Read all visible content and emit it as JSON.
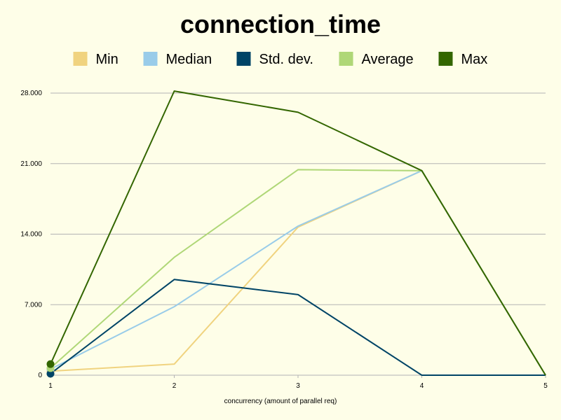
{
  "chart_data": {
    "type": "line",
    "title": "connection_time",
    "xlabel": "concurrency (amount of parallel req)",
    "ylabel": "",
    "x": [
      1,
      2,
      3,
      4,
      5
    ],
    "ylim": [
      0,
      28000
    ],
    "yticks": [
      0,
      7000,
      14000,
      21000,
      28000
    ],
    "ytick_labels": [
      "0",
      "7.000",
      "14.000",
      "21.000",
      "28.000"
    ],
    "grid": true,
    "legend_position": "top",
    "series": [
      {
        "name": "Min",
        "color": "#f0d37f",
        "values": [
          400,
          1100,
          14700,
          20300,
          0
        ]
      },
      {
        "name": "Median",
        "color": "#99cce9",
        "values": [
          600,
          6800,
          14800,
          20300,
          0
        ]
      },
      {
        "name": "Std. dev.",
        "color": "#004466",
        "values": [
          150,
          9500,
          8000,
          0,
          0
        ]
      },
      {
        "name": "Average",
        "color": "#afd777",
        "values": [
          700,
          11700,
          20400,
          20300,
          0
        ]
      },
      {
        "name": "Max",
        "color": "#336600",
        "values": [
          1100,
          28200,
          26100,
          20300,
          0
        ]
      }
    ]
  }
}
